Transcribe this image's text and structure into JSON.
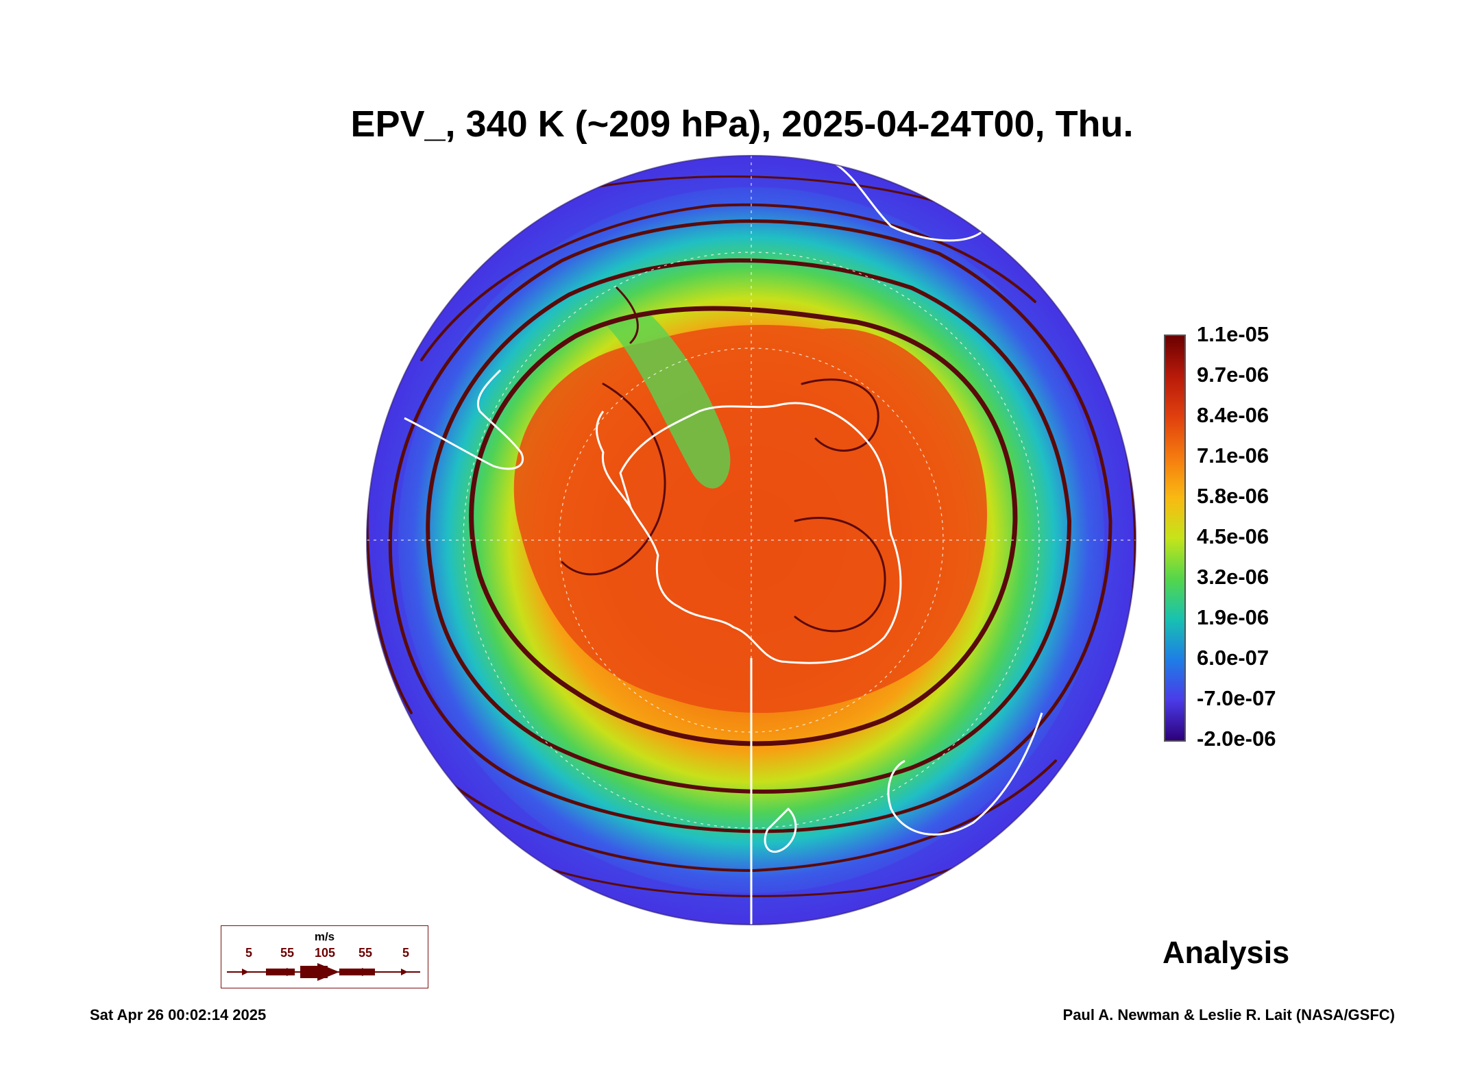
{
  "title": "EPV_, 340 K (~209 hPa), 2025-04-24T00, Thu.",
  "map": {
    "projection": "south polar orthographic",
    "field": "EPV_",
    "overlay": "streamlines",
    "coastline_color": "#ffffff",
    "streamline_color": "#5a0a0a"
  },
  "colorbar": {
    "labels": [
      "1.1e-05",
      "9.7e-06",
      "8.4e-06",
      "7.1e-06",
      "5.8e-06",
      "4.5e-06",
      "3.2e-06",
      "1.9e-06",
      "6.0e-07",
      "-7.0e-07",
      "-2.0e-06"
    ],
    "colors": [
      "#6b0000",
      "#b81a0a",
      "#e0400e",
      "#f57a0f",
      "#f9b912",
      "#c5e41a",
      "#55d64a",
      "#18c2b0",
      "#1e7ee6",
      "#4a3ce8",
      "#2e007a"
    ]
  },
  "analysis_label": "Analysis",
  "speed_legend": {
    "unit": "m/s",
    "values": [
      "5",
      "55",
      "105",
      "55",
      "5"
    ]
  },
  "footer": {
    "date": "Sat Apr 26 00:02:14 2025",
    "credit": "Paul A. Newman & Leslie R. Lait (NASA/GSFC)"
  }
}
